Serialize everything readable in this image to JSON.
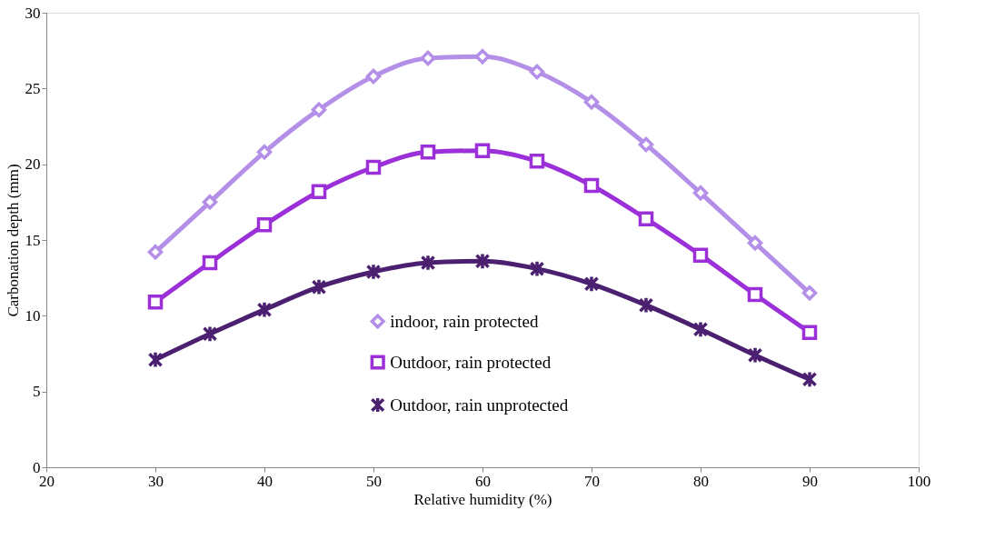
{
  "chart_data": {
    "type": "line",
    "xlabel": "Relative humidity  (%)",
    "ylabel": "Carbonation depth (mm)",
    "x": [
      30,
      35,
      40,
      45,
      50,
      55,
      60,
      65,
      70,
      75,
      80,
      85,
      90
    ],
    "series": [
      {
        "name": "indoor, rain protected",
        "color": "#b48fe8",
        "marker": "diamond",
        "values": [
          14.2,
          17.5,
          20.8,
          23.6,
          25.8,
          27.0,
          27.1,
          26.1,
          24.1,
          21.3,
          18.1,
          14.8,
          11.5
        ]
      },
      {
        "name": "Outdoor, rain protected",
        "color": "#9b30d9",
        "marker": "square",
        "values": [
          10.9,
          13.5,
          16.0,
          18.2,
          19.8,
          20.8,
          20.9,
          20.2,
          18.6,
          16.4,
          14.0,
          11.4,
          8.9
        ]
      },
      {
        "name": "Outdoor, rain unprotected",
        "color": "#4b2070",
        "marker": "cross",
        "values": [
          7.1,
          8.8,
          10.4,
          11.9,
          12.9,
          13.5,
          13.6,
          13.1,
          12.1,
          10.7,
          9.1,
          7.4,
          5.8
        ]
      }
    ],
    "xlim": [
      20,
      100
    ],
    "xticks": [
      20,
      30,
      40,
      50,
      60,
      70,
      80,
      90,
      100
    ],
    "ylim": [
      0,
      30
    ],
    "yticks": [
      0,
      5,
      10,
      15,
      20,
      25,
      30
    ],
    "grid": false,
    "legend": "bottom",
    "line_style": "solid"
  }
}
